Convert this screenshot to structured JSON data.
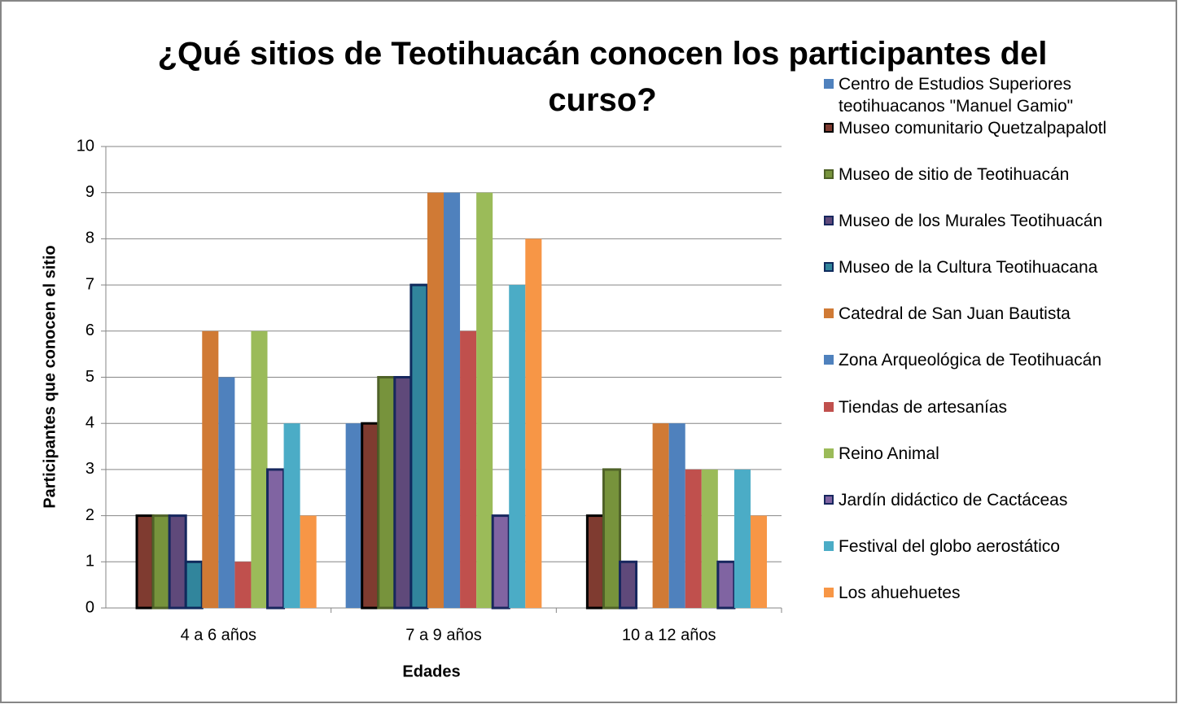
{
  "chart_data": {
    "type": "bar",
    "title": "¿Qué sitios de Teotihuacán conocen los participantes del curso?",
    "x_label": "Edades",
    "y_label": "Participantes que conocen el sitio",
    "categories": [
      "4 a 6 años",
      "7 a 9 años",
      "10 a 12 años"
    ],
    "ylim": [
      0,
      10
    ],
    "yticks": [
      0,
      1,
      2,
      3,
      4,
      5,
      6,
      7,
      8,
      9,
      10
    ],
    "grid": true,
    "legend": "right",
    "series": [
      {
        "name": "Centro de Estudios Superiores teotihuacanos \"Manuel Gamio\"",
        "color": "#4f81bd",
        "values": [
          0,
          4,
          0
        ]
      },
      {
        "name": "Museo comunitario Quetzalpapalotl",
        "color": "#7f3b30",
        "edgecolor": "#000000",
        "values": [
          2,
          4,
          2
        ]
      },
      {
        "name": "Museo de sitio de Teotihuacán",
        "color": "#77933c",
        "edgecolor": "#4f6228",
        "values": [
          2,
          5,
          3
        ]
      },
      {
        "name": "Museo de los Murales Teotihuacán",
        "color": "#5f497a",
        "edgecolor": "#17275e",
        "values": [
          2,
          5,
          1
        ]
      },
      {
        "name": "Museo de la Cultura Teotihuacana",
        "color": "#31859c",
        "edgecolor": "#0f2a5c",
        "values": [
          1,
          7,
          0
        ]
      },
      {
        "name": "Catedral de San Juan Bautista",
        "color": "#d07a35",
        "values": [
          6,
          9,
          4
        ]
      },
      {
        "name": "Zona Arqueológica de Teotihuacán",
        "color": "#4f81bd",
        "values": [
          5,
          9,
          4
        ]
      },
      {
        "name": "Tiendas de artesanías",
        "color": "#c0504d",
        "values": [
          1,
          6,
          3
        ]
      },
      {
        "name": "Reino Animal",
        "color": "#9bbb59",
        "values": [
          6,
          9,
          3
        ]
      },
      {
        "name": "Jardín didáctico de Cactáceas",
        "color": "#8064a2",
        "edgecolor": "#17275e",
        "values": [
          3,
          2,
          1
        ]
      },
      {
        "name": "Festival del globo aerostático",
        "color": "#4bacc6",
        "values": [
          4,
          7,
          3
        ]
      },
      {
        "name": "Los ahuehuetes",
        "color": "#f79646",
        "values": [
          2,
          8,
          2
        ]
      }
    ]
  }
}
